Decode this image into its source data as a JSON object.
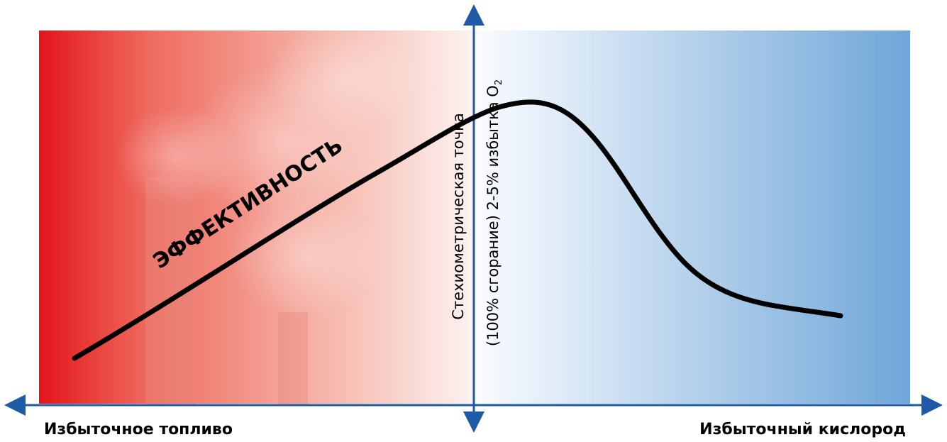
{
  "axis": {
    "left_label": "Избыточное топливо",
    "right_label": "Избыточный кислород"
  },
  "curve": {
    "label": "ЭФФЕКТИВНОСТЬ"
  },
  "center_line": {
    "label_line1": "Стехиометрическая точка",
    "label_line2": "(100% сгорание) 2-5% избытка O",
    "subscript": "2"
  }
}
